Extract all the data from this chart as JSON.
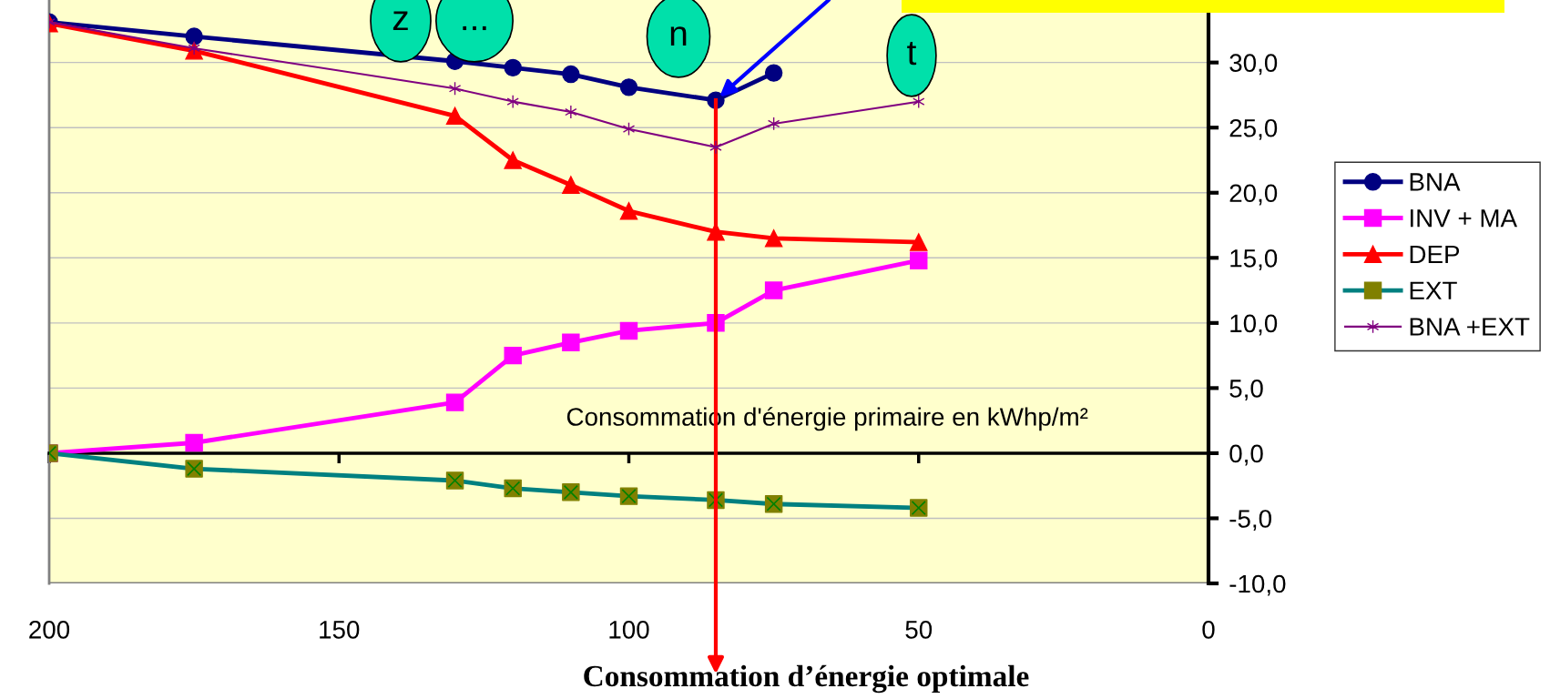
{
  "chart_data": {
    "type": "line",
    "xlabel": "Consommation d'énergie primaire en kWhp/m²",
    "x": [
      200,
      175,
      130,
      120,
      110,
      100,
      85,
      75,
      50
    ],
    "series": [
      {
        "name": "BNA",
        "color": "#000080",
        "marker": "circle",
        "values": [
          33.1,
          32.0,
          30.1,
          29.6,
          29.1,
          28.1,
          27.1,
          29.2,
          null
        ]
      },
      {
        "name": "INV + MA",
        "color": "#ff00ff",
        "marker": "square",
        "values": [
          0.0,
          0.8,
          3.9,
          7.5,
          8.5,
          9.4,
          10.0,
          12.5,
          14.8
        ]
      },
      {
        "name": "DEP",
        "color": "#ff0000",
        "marker": "triangle",
        "values": [
          33.0,
          30.9,
          25.9,
          22.5,
          20.6,
          18.6,
          17.0,
          16.5,
          16.2
        ]
      },
      {
        "name": "EXT",
        "color": "#008080",
        "marker": "square",
        "colors": [
          "#808000",
          "#808000",
          "#808000",
          "#808000",
          "#808000",
          "#808000",
          "#808000",
          "#808000",
          "#808000"
        ],
        "values": [
          0.0,
          -1.2,
          -2.1,
          -2.7,
          -3.0,
          -3.3,
          -3.6,
          -3.9,
          -4.2
        ]
      },
      {
        "name": "BNA +EXT",
        "color": "#800080",
        "marker": "cross",
        "values": [
          33.1,
          31.1,
          28.0,
          27.0,
          26.2,
          24.9,
          23.5,
          25.3,
          27.0
        ]
      }
    ],
    "xlim": [
      200,
      0
    ],
    "xticks": [
      200,
      150,
      100,
      50,
      0
    ],
    "ylim": [
      -10,
      34.8
    ],
    "yticks": [
      {
        "value": -10,
        "label": "-10,0"
      },
      {
        "value": -5,
        "label": "-5,0"
      },
      {
        "value": 0,
        "label": "0,0"
      },
      {
        "value": 5,
        "label": "5,0"
      },
      {
        "value": 10,
        "label": "10,0"
      },
      {
        "value": 15,
        "label": "15,0"
      },
      {
        "value": 20,
        "label": "20,0"
      },
      {
        "value": 25,
        "label": "25,0"
      },
      {
        "value": 30,
        "label": "30,0"
      }
    ],
    "ref_lines": [
      {
        "axis": "x",
        "value": 85,
        "color": "#ff0000",
        "label": "Consommation d’énergie optimale"
      }
    ],
    "annotations": [
      "n",
      "t",
      "z",
      "..."
    ],
    "grid": "y",
    "legend": "right"
  }
}
